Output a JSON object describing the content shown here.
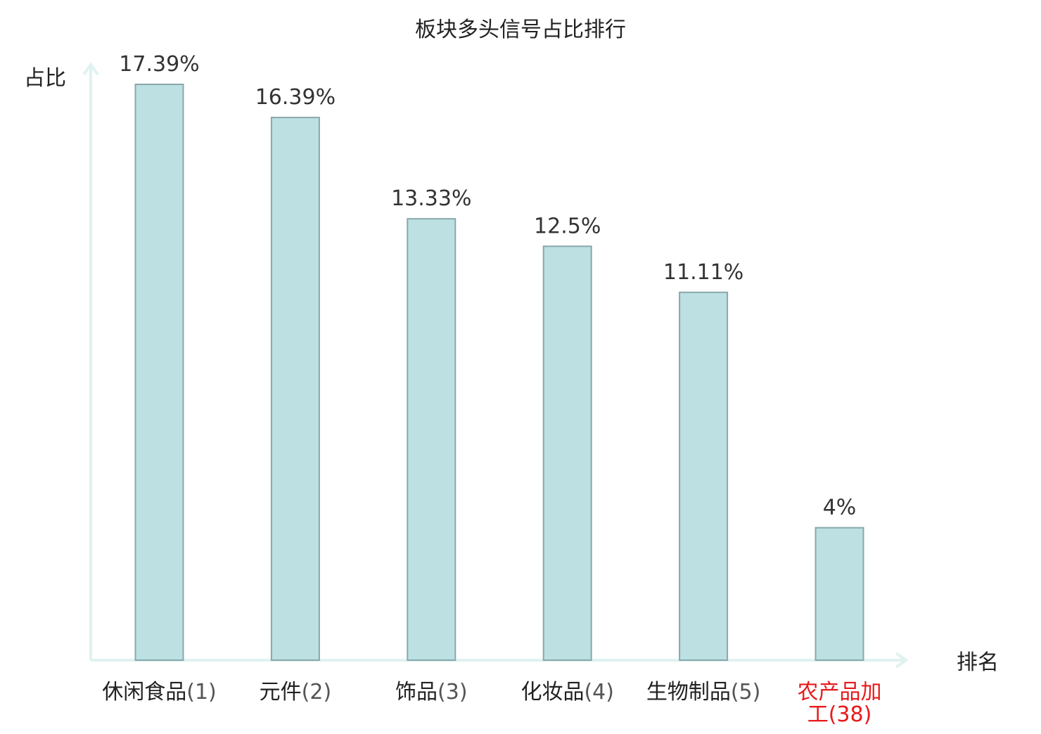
{
  "chart_data": {
    "type": "bar",
    "title": "板块多头信号占比排行",
    "ylabel": "占比",
    "xlabel": "排名",
    "categories": [
      {
        "name": "休闲食品",
        "rank": "(1)",
        "highlight": false
      },
      {
        "name": "元件",
        "rank": "(2)",
        "highlight": false
      },
      {
        "name": "饰品",
        "rank": "(3)",
        "highlight": false
      },
      {
        "name": "化妆品",
        "rank": "(4)",
        "highlight": false
      },
      {
        "name": "生物制品",
        "rank": "(5)",
        "highlight": false
      },
      {
        "name": "农产品加工",
        "rank": "(38)",
        "highlight": true
      }
    ],
    "values": [
      17.39,
      16.39,
      13.33,
      12.5,
      11.11,
      4
    ],
    "value_labels": [
      "17.39%",
      "16.39%",
      "13.33%",
      "12.5%",
      "11.11%",
      "4%"
    ],
    "ylim": [
      0,
      17.39
    ],
    "grid": false,
    "colors": {
      "bar_fill": "#bde0e3",
      "bar_stroke": "#88a8ab",
      "axis": "#dff2f0",
      "text": "#222222",
      "value_label": "#333333",
      "rank": "#555555",
      "highlight": "#e8191b"
    }
  }
}
